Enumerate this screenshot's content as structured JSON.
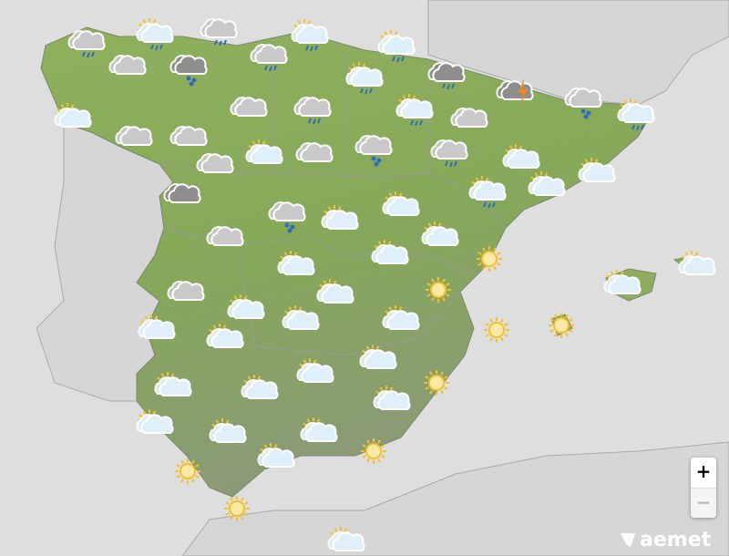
{
  "map": {
    "region": "Spain",
    "colors": {
      "sea": "#dedede",
      "land_other": "#d6d6d6",
      "spain_land": "#8eab5c",
      "border": "#9a9a9a"
    },
    "forecast_icons": [
      "cloud-rain",
      "sun-cloud-rain",
      "cloud-rain",
      "sun-cloud-rain",
      "sun-cloud-rain",
      "cloud-rain",
      "cloud",
      "cloud-dark-snow",
      "sun-cloud-rain",
      "cloud-dark-rain",
      "cloud-storm",
      "cloud-snow",
      "sun-cloud-rain",
      "sun-cloud",
      "cloud",
      "cloud-rain",
      "sun-cloud-rain",
      "cloud",
      "cloud",
      "cloud",
      "sun-cloud",
      "cloud",
      "cloud-snow",
      "cloud-rain",
      "sun-cloud",
      "sun-cloud",
      "cloud",
      "cloud-dark",
      "sun-cloud-rain",
      "sun-cloud",
      "cloud-snow",
      "sun-cloud",
      "sun-cloud",
      "sun-cloud",
      "cloud",
      "sun-cloud",
      "sun",
      "sun-cloud",
      "sun-cloud",
      "sun-cloud",
      "cloud",
      "sun-cloud",
      "sun",
      "sun-cloud",
      "sun-cloud",
      "sun-cloud",
      "sun-cloud",
      "sun",
      "sun",
      "sun-cloud",
      "sun-cloud",
      "sun-cloud",
      "sun",
      "sun-cloud",
      "sun-cloud",
      "sun-cloud",
      "sun-cloud",
      "sun-cloud",
      "sun-cloud",
      "sun-cloud",
      "sun",
      "sun",
      "sun",
      "sun-cloud"
    ]
  },
  "controls": {
    "zoom_in": "+",
    "zoom_out": "−"
  },
  "logo": {
    "text": "aemet"
  }
}
